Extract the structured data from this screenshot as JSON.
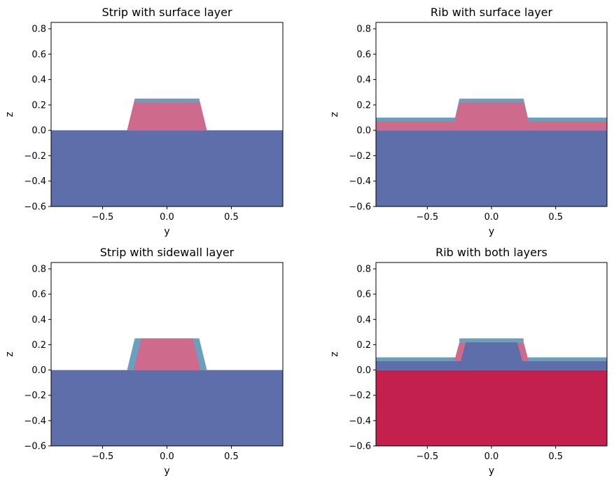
{
  "colors": {
    "substrate": "#5e6eab",
    "core": "#ce6a8c",
    "layer": "#6a9fbe",
    "rib_substrate": "#c4204e",
    "rib_core_inv": "#5e6eab",
    "rib_layer_inv": "#ce6a8c"
  },
  "chart_data": [
    {
      "type": "area",
      "title": "Strip with surface layer",
      "xlabel": "y",
      "ylabel": "z",
      "xlim": [
        -0.9,
        0.9
      ],
      "ylim": [
        -0.6,
        0.85
      ],
      "xticks": [
        "−0.5",
        "0.0",
        "0.5"
      ],
      "xtick_values": [
        -0.5,
        0.0,
        0.5
      ],
      "yticks": [
        "−0.6",
        "−0.4",
        "−0.2",
        "0.0",
        "0.2",
        "0.4",
        "0.6",
        "0.8"
      ],
      "ytick_values": [
        -0.6,
        -0.4,
        -0.2,
        0.0,
        0.2,
        0.4,
        0.6,
        0.8
      ],
      "regions": [
        {
          "name": "substrate",
          "color_key": "substrate",
          "points": [
            [
              -0.9,
              -0.6
            ],
            [
              0.9,
              -0.6
            ],
            [
              0.9,
              0.0
            ],
            [
              -0.9,
              0.0
            ]
          ]
        },
        {
          "name": "core",
          "color_key": "core",
          "points": [
            [
              -0.31,
              0.0
            ],
            [
              0.31,
              0.0
            ],
            [
              0.25,
              0.25
            ],
            [
              -0.25,
              0.25
            ]
          ]
        },
        {
          "name": "surface-layer",
          "color_key": "layer",
          "points": [
            [
              -0.25,
              0.22
            ],
            [
              0.25,
              0.22
            ],
            [
              0.25,
              0.25
            ],
            [
              -0.25,
              0.25
            ]
          ]
        }
      ]
    },
    {
      "type": "area",
      "title": "Rib with surface layer",
      "xlabel": "y",
      "ylabel": "z",
      "xlim": [
        -0.9,
        0.9
      ],
      "ylim": [
        -0.6,
        0.85
      ],
      "xticks": [
        "−0.5",
        "0.0",
        "0.5"
      ],
      "xtick_values": [
        -0.5,
        0.0,
        0.5
      ],
      "yticks": [
        "−0.6",
        "−0.4",
        "−0.2",
        "0.0",
        "0.2",
        "0.4",
        "0.6",
        "0.8"
      ],
      "ytick_values": [
        -0.6,
        -0.4,
        -0.2,
        0.0,
        0.2,
        0.4,
        0.6,
        0.8
      ],
      "regions": [
        {
          "name": "substrate",
          "color_key": "substrate",
          "points": [
            [
              -0.9,
              -0.6
            ],
            [
              0.9,
              -0.6
            ],
            [
              0.9,
              0.0
            ],
            [
              -0.9,
              0.0
            ]
          ]
        },
        {
          "name": "slab-layer",
          "color_key": "layer",
          "points": [
            [
              -0.9,
              0.0
            ],
            [
              0.9,
              0.0
            ],
            [
              0.9,
              0.1
            ],
            [
              -0.9,
              0.1
            ]
          ]
        },
        {
          "name": "slab-core",
          "color_key": "core",
          "points": [
            [
              -0.9,
              0.0
            ],
            [
              0.9,
              0.0
            ],
            [
              0.9,
              0.07
            ],
            [
              -0.9,
              0.07
            ]
          ]
        },
        {
          "name": "rib-layer",
          "color_key": "layer",
          "points": [
            [
              -0.29,
              0.07
            ],
            [
              0.29,
              0.07
            ],
            [
              0.25,
              0.25
            ],
            [
              -0.25,
              0.25
            ]
          ]
        },
        {
          "name": "rib-core",
          "color_key": "core",
          "points": [
            [
              -0.29,
              0.07
            ],
            [
              0.29,
              0.07
            ],
            [
              0.25,
              0.22
            ],
            [
              -0.25,
              0.22
            ]
          ]
        }
      ]
    },
    {
      "type": "area",
      "title": "Strip with sidewall layer",
      "xlabel": "y",
      "ylabel": "z",
      "xlim": [
        -0.9,
        0.9
      ],
      "ylim": [
        -0.6,
        0.85
      ],
      "xticks": [
        "−0.5",
        "0.0",
        "0.5"
      ],
      "xtick_values": [
        -0.5,
        0.0,
        0.5
      ],
      "yticks": [
        "−0.6",
        "−0.4",
        "−0.2",
        "0.0",
        "0.2",
        "0.4",
        "0.6",
        "0.8"
      ],
      "ytick_values": [
        -0.6,
        -0.4,
        -0.2,
        0.0,
        0.2,
        0.4,
        0.6,
        0.8
      ],
      "regions": [
        {
          "name": "substrate",
          "color_key": "substrate",
          "points": [
            [
              -0.9,
              -0.6
            ],
            [
              0.9,
              -0.6
            ],
            [
              0.9,
              0.0
            ],
            [
              -0.9,
              0.0
            ]
          ]
        },
        {
          "name": "sidewall-layer",
          "color_key": "layer",
          "points": [
            [
              -0.31,
              0.0
            ],
            [
              0.31,
              0.0
            ],
            [
              0.25,
              0.25
            ],
            [
              -0.25,
              0.25
            ]
          ]
        },
        {
          "name": "core",
          "color_key": "core",
          "points": [
            [
              -0.26,
              0.0
            ],
            [
              0.26,
              0.0
            ],
            [
              0.2,
              0.25
            ],
            [
              -0.2,
              0.25
            ]
          ]
        }
      ]
    },
    {
      "type": "area",
      "title": "Rib with both layers",
      "xlabel": "y",
      "ylabel": "z",
      "xlim": [
        -0.9,
        0.9
      ],
      "ylim": [
        -0.6,
        0.85
      ],
      "xticks": [
        "−0.5",
        "0.0",
        "0.5"
      ],
      "xtick_values": [
        -0.5,
        0.0,
        0.5
      ],
      "yticks": [
        "−0.6",
        "−0.4",
        "−0.2",
        "0.0",
        "0.2",
        "0.4",
        "0.6",
        "0.8"
      ],
      "ytick_values": [
        -0.6,
        -0.4,
        -0.2,
        0.0,
        0.2,
        0.4,
        0.6,
        0.8
      ],
      "regions": [
        {
          "name": "substrate",
          "color_key": "rib_substrate",
          "points": [
            [
              -0.9,
              -0.6
            ],
            [
              0.9,
              -0.6
            ],
            [
              0.9,
              0.0
            ],
            [
              -0.9,
              0.0
            ]
          ]
        },
        {
          "name": "slab-layer",
          "color_key": "layer",
          "points": [
            [
              -0.9,
              0.0
            ],
            [
              0.9,
              0.0
            ],
            [
              0.9,
              0.1
            ],
            [
              -0.9,
              0.1
            ]
          ]
        },
        {
          "name": "slab-core",
          "color_key": "rib_core_inv",
          "points": [
            [
              -0.9,
              0.0
            ],
            [
              0.9,
              0.0
            ],
            [
              0.9,
              0.07
            ],
            [
              -0.9,
              0.07
            ]
          ]
        },
        {
          "name": "rib-top-layer",
          "color_key": "layer",
          "points": [
            [
              -0.25,
              0.22
            ],
            [
              0.25,
              0.22
            ],
            [
              0.25,
              0.25
            ],
            [
              -0.25,
              0.25
            ]
          ]
        },
        {
          "name": "rib-sidewall-layer",
          "color_key": "rib_layer_inv",
          "points": [
            [
              -0.29,
              0.07
            ],
            [
              0.29,
              0.07
            ],
            [
              0.25,
              0.22
            ],
            [
              -0.25,
              0.22
            ]
          ]
        },
        {
          "name": "rib-core",
          "color_key": "rib_core_inv",
          "points": [
            [
              -0.24,
              0.07
            ],
            [
              0.24,
              0.07
            ],
            [
              0.2,
              0.22
            ],
            [
              -0.2,
              0.22
            ]
          ]
        }
      ]
    }
  ]
}
